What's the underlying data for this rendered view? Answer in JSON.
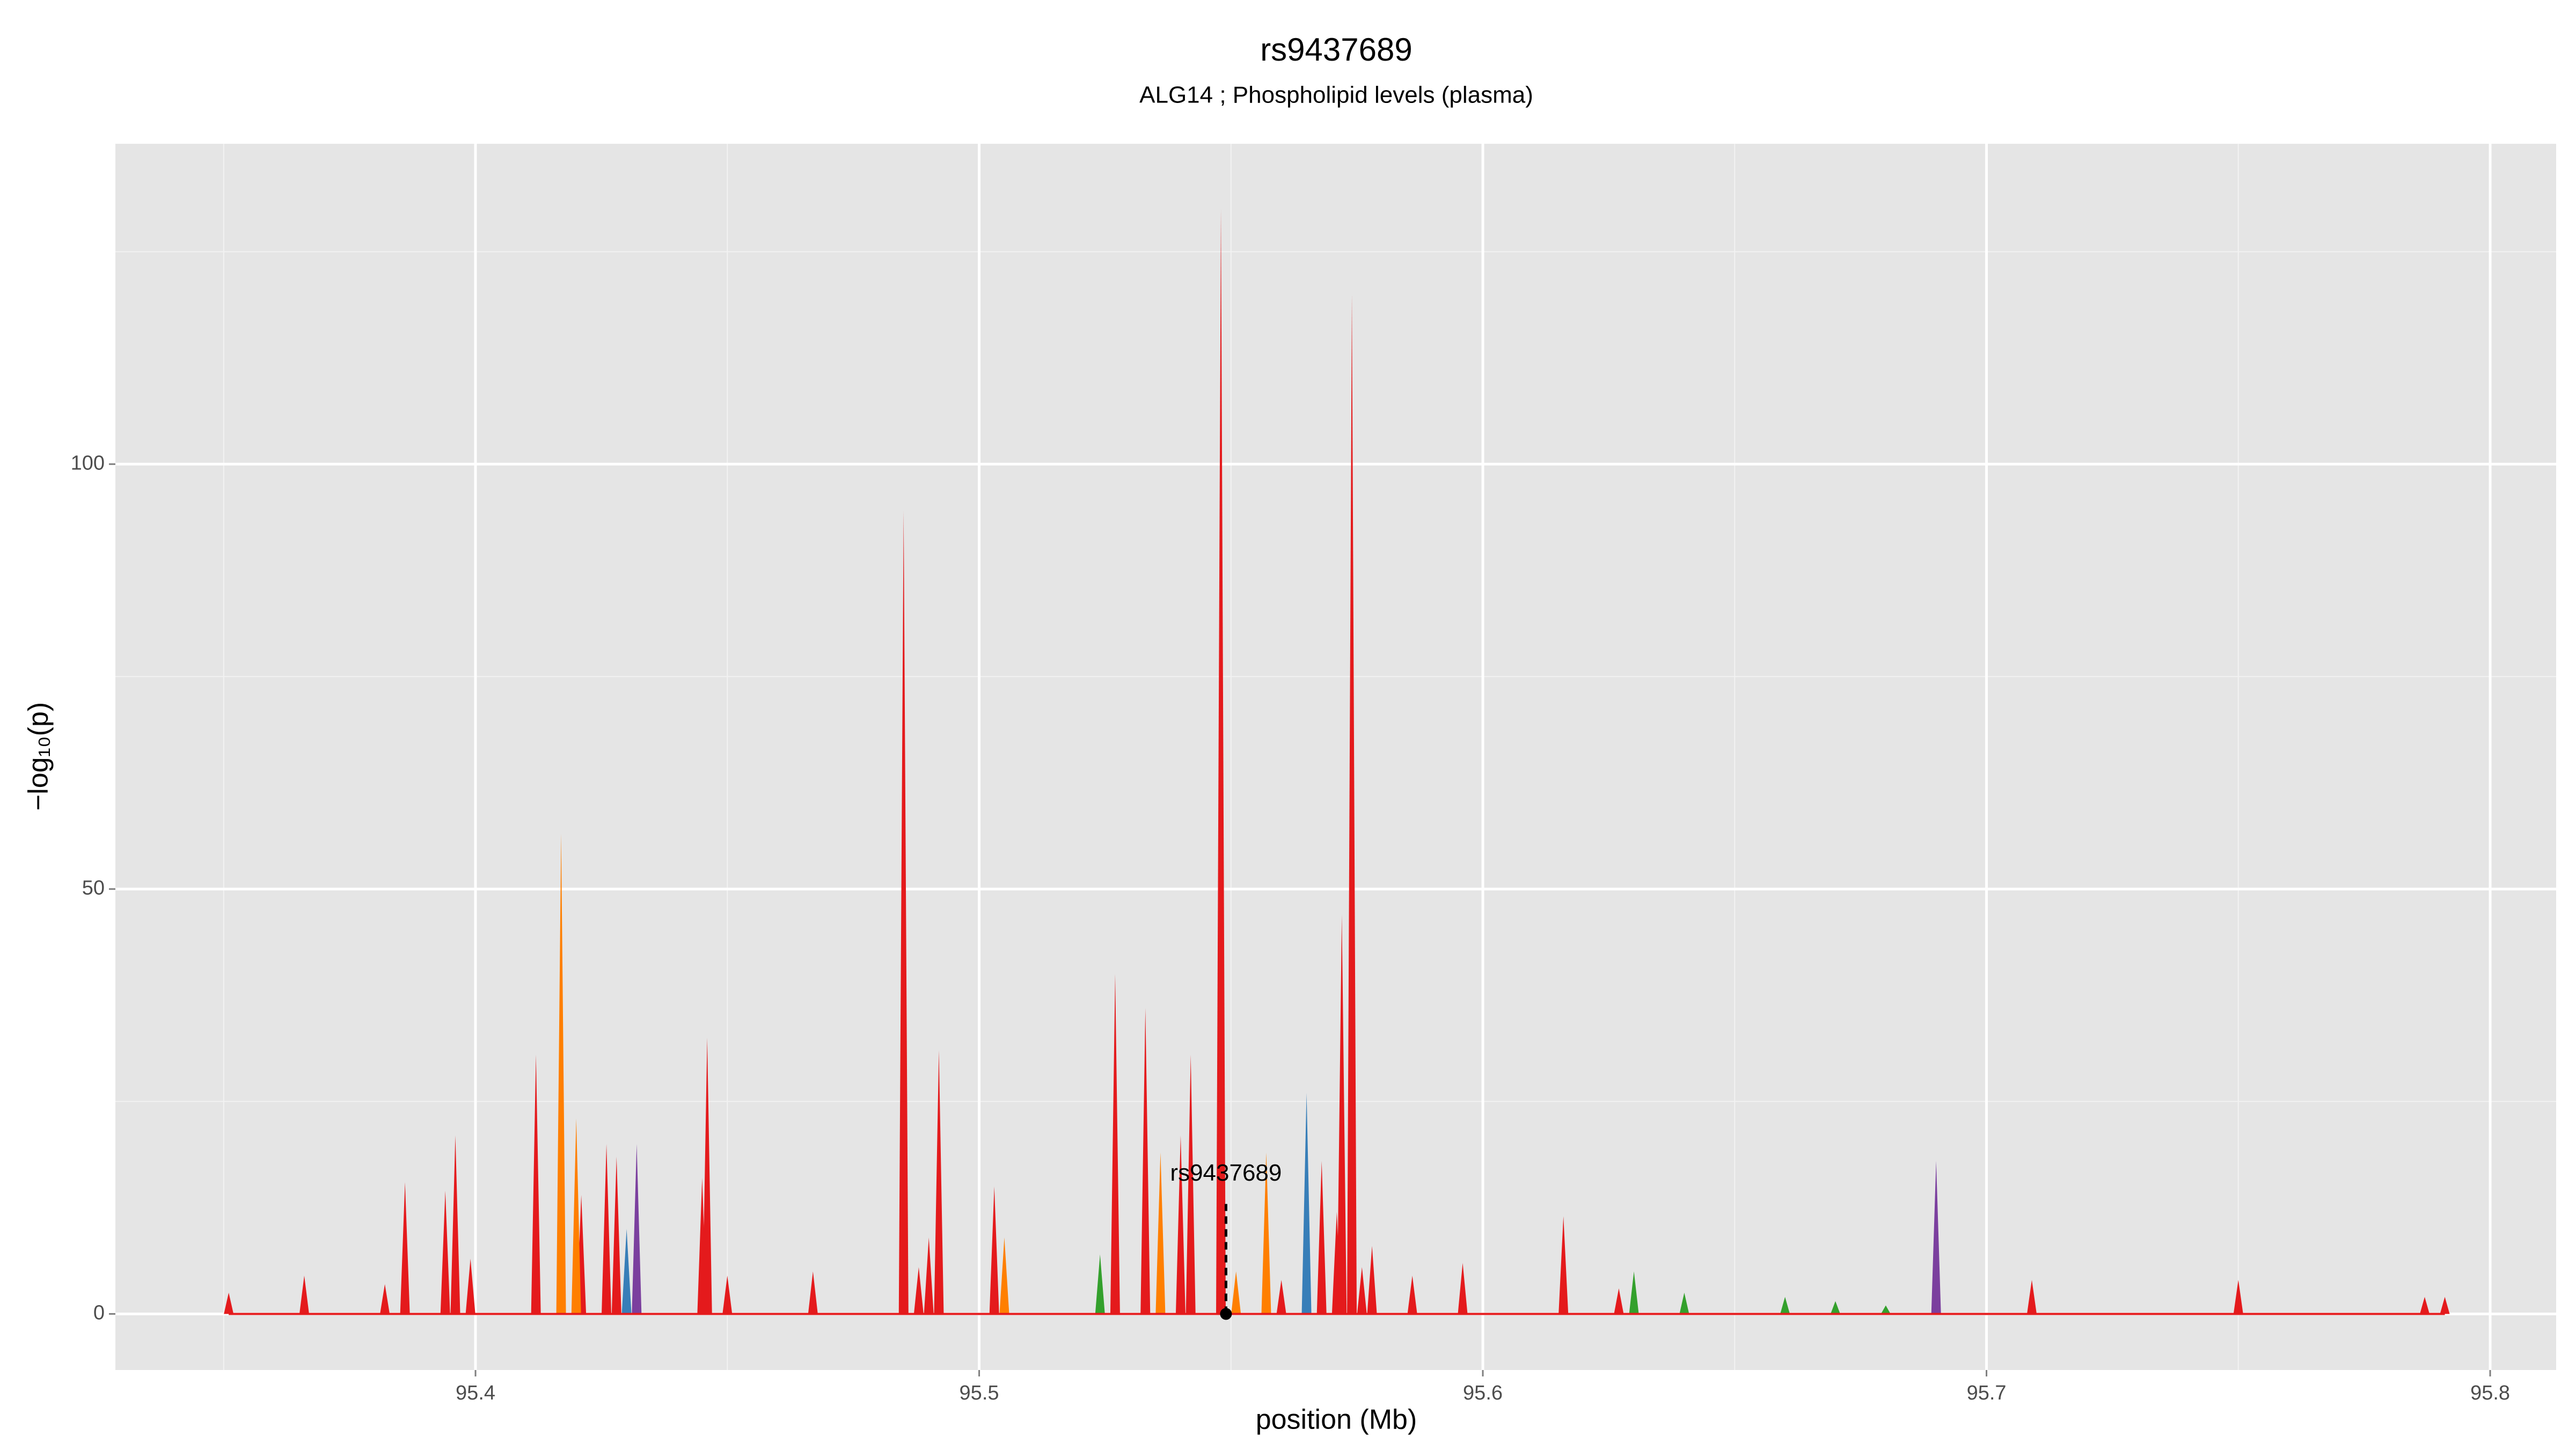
{
  "chart_data": {
    "type": "spike",
    "title": "rs9437689",
    "subtitle": "ALG14 ; Phospholipid levels (plasma)",
    "xlabel": "position (Mb)",
    "ylabel": "−log₁₀(p)",
    "xlim": [
      95.3285,
      95.8131
    ],
    "ylim": [
      -6.6,
      137.7
    ],
    "xticks": [
      95.4,
      95.5,
      95.6,
      95.7,
      95.8
    ],
    "yticks": [
      0,
      50,
      100
    ],
    "xminor": [
      95.35,
      95.45,
      95.55,
      95.65,
      95.75
    ],
    "yminor": [
      25,
      75,
      125
    ],
    "grid": true,
    "series": [
      {
        "color": "#e41a1c",
        "x": [
          95.351,
          95.366,
          95.382,
          95.386,
          95.394,
          95.396,
          95.399,
          95.412,
          95.421,
          95.426,
          95.428,
          95.445,
          95.446,
          95.45,
          95.467,
          95.485,
          95.488,
          95.49,
          95.492,
          95.503,
          95.527,
          95.533,
          95.54,
          95.542,
          95.548,
          95.56,
          95.568,
          95.571,
          95.572,
          95.574,
          95.576,
          95.578,
          95.586,
          95.596,
          95.616,
          95.627,
          95.709,
          95.75,
          95.787,
          95.791
        ],
        "values": [
          2.5,
          4.5,
          3.5,
          15.5,
          14.5,
          21,
          6.5,
          30.5,
          14,
          20,
          18.5,
          16,
          32.5,
          4.5,
          5,
          94.5,
          5.5,
          9,
          31,
          15,
          40,
          36,
          21,
          30.5,
          130,
          4,
          18,
          12,
          47,
          120,
          5.5,
          8,
          4.5,
          6,
          11.5,
          3,
          4,
          4,
          2,
          2
        ]
      },
      {
        "color": "#ff7f00",
        "x": [
          95.417,
          95.42,
          95.505,
          95.536,
          95.551,
          95.557
        ],
        "values": [
          56.5,
          23,
          9,
          19,
          5,
          19
        ]
      },
      {
        "color": "#377eb8",
        "x": [
          95.43,
          95.565
        ],
        "values": [
          10,
          26
        ]
      },
      {
        "color": "#7b3f9e",
        "x": [
          95.432,
          95.69
        ],
        "values": [
          20,
          18
        ]
      },
      {
        "color": "#33a02c",
        "x": [
          95.524,
          95.63,
          95.64,
          95.66,
          95.67,
          95.68
        ],
        "values": [
          7,
          5,
          2.5,
          2,
          1.5,
          1
        ]
      }
    ],
    "annotation": {
      "label": "rs9437689",
      "x": 95.549,
      "y": 0
    }
  }
}
